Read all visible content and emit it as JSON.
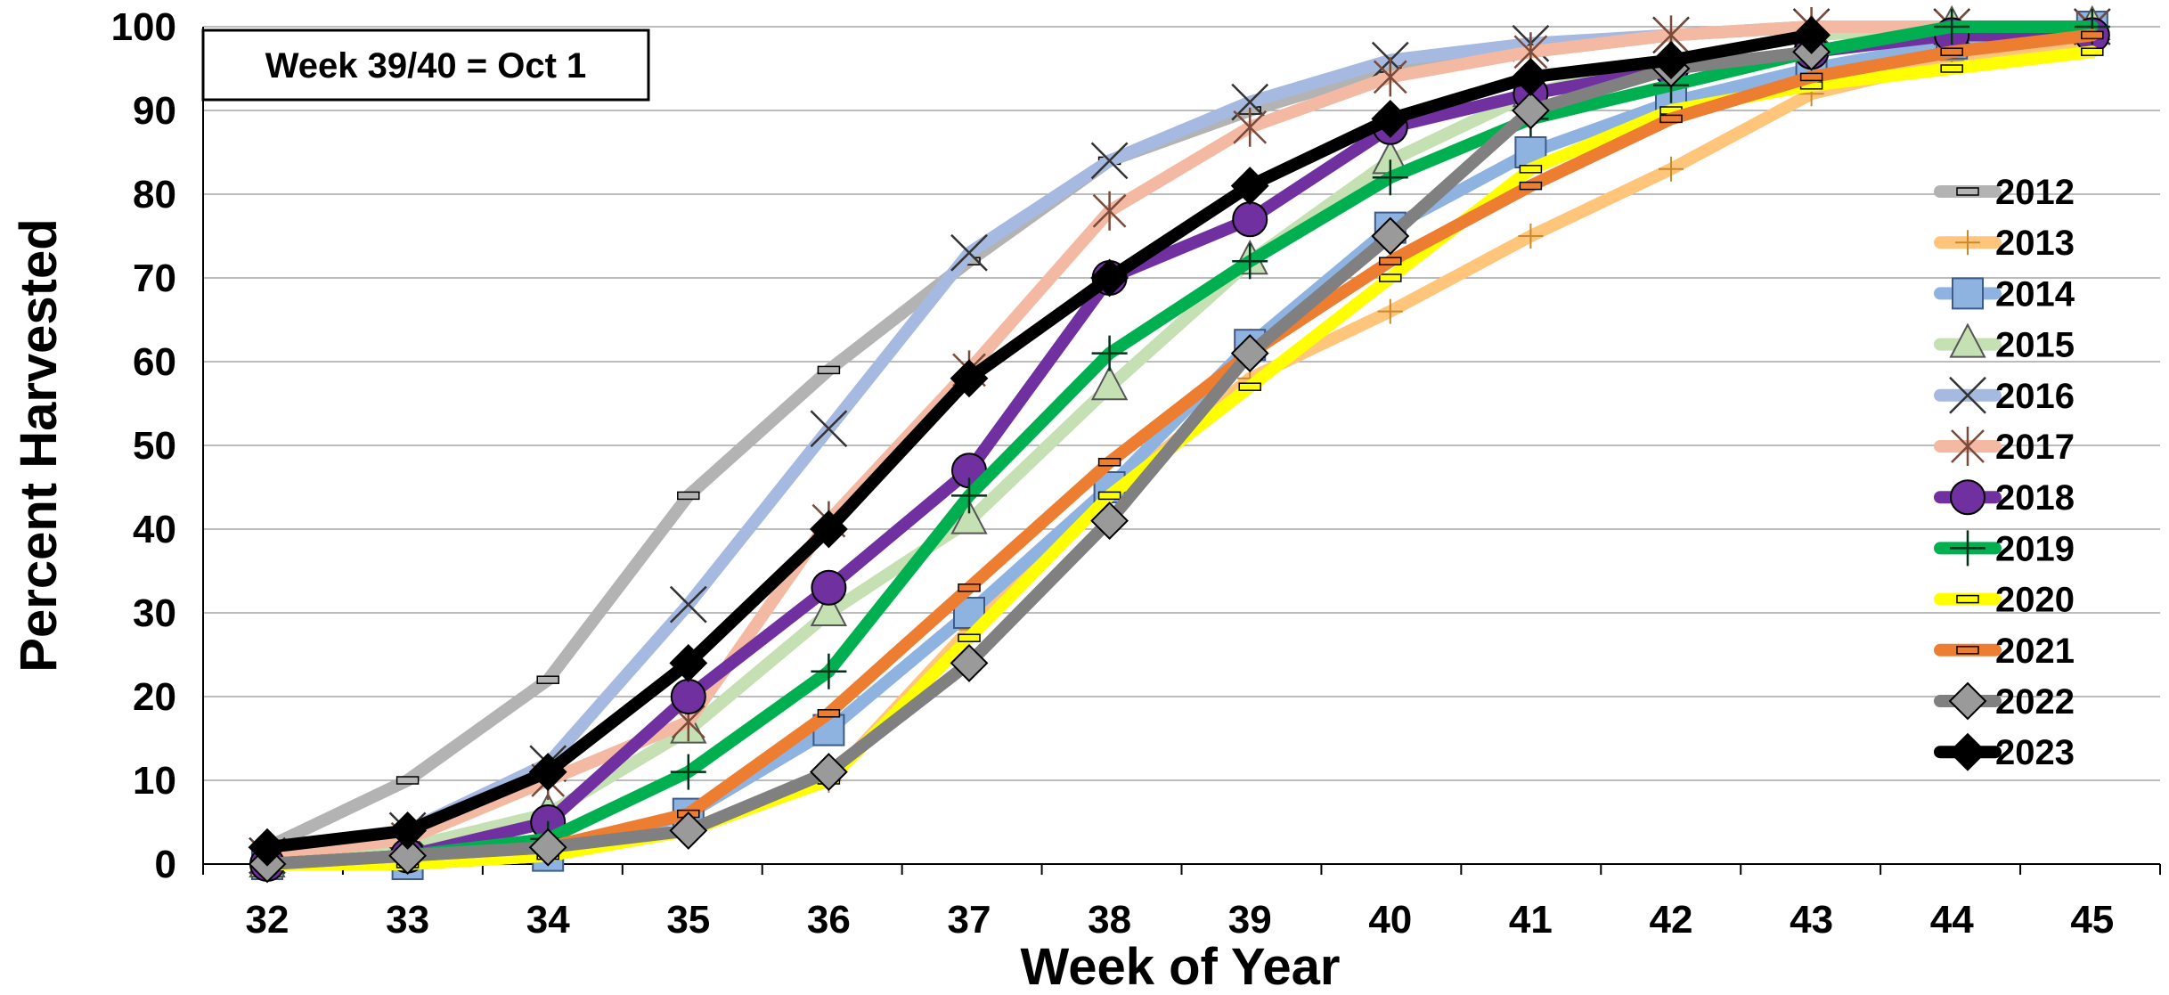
{
  "chart_data": {
    "type": "line",
    "xlabel": "Week of Year",
    "ylabel": "Percent Harvested",
    "xlim": [
      32,
      45
    ],
    "ylim": [
      0,
      100
    ],
    "x_ticks": [
      32,
      33,
      34,
      35,
      36,
      37,
      38,
      39,
      40,
      41,
      42,
      43,
      44,
      45
    ],
    "y_ticks": [
      0,
      10,
      20,
      30,
      40,
      50,
      60,
      70,
      80,
      90,
      100
    ],
    "grid": "horizontal",
    "legend_position": "right",
    "annotation": "Week 39/40 = Oct 1",
    "series": [
      {
        "name": "2012",
        "color": "#b3b3b3",
        "marker": "dash-rect",
        "x": [
          32,
          33,
          34,
          35,
          36,
          37,
          38,
          39,
          40,
          41,
          42,
          43,
          44,
          45
        ],
        "values": [
          2,
          10,
          22,
          44,
          59,
          72,
          84,
          90,
          95,
          97,
          99,
          100,
          100,
          100
        ]
      },
      {
        "name": "2013",
        "color": "#ffc57a",
        "marker": "cross-thin",
        "x": [
          32,
          33,
          34,
          35,
          36,
          37,
          38,
          39,
          40,
          41,
          42,
          43,
          44,
          45
        ],
        "values": [
          0,
          0,
          1,
          4,
          10,
          28,
          44,
          58,
          66,
          75,
          83,
          92,
          96,
          98
        ]
      },
      {
        "name": "2014",
        "color": "#8eb3e0",
        "marker": "square",
        "x": [
          32,
          33,
          34,
          35,
          36,
          37,
          38,
          39,
          40,
          41,
          42,
          43,
          44,
          45
        ],
        "values": [
          0,
          0,
          1,
          6,
          16,
          30,
          45,
          62,
          76,
          85,
          91,
          95,
          98,
          100
        ]
      },
      {
        "name": "2015",
        "color": "#c5e0b3",
        "marker": "triangle",
        "x": [
          32,
          33,
          34,
          35,
          36,
          37,
          38,
          39,
          40,
          41,
          42,
          43,
          44,
          45
        ],
        "values": [
          0,
          2,
          6,
          16,
          30,
          41,
          57,
          72,
          84,
          92,
          96,
          99,
          100,
          100
        ]
      },
      {
        "name": "2016",
        "color": "#a6b9e0",
        "marker": "x",
        "x": [
          32,
          33,
          34,
          35,
          36,
          37,
          38,
          39,
          40,
          41,
          42,
          43,
          44,
          45
        ],
        "values": [
          1,
          4,
          12,
          31,
          52,
          73,
          84,
          91,
          96,
          98,
          99,
          100,
          100,
          100
        ]
      },
      {
        "name": "2017",
        "color": "#f4b9a3",
        "marker": "asterisk",
        "x": [
          32,
          33,
          34,
          35,
          36,
          37,
          38,
          39,
          40,
          41,
          42,
          43,
          44,
          45
        ],
        "values": [
          1,
          3,
          10,
          17,
          41,
          59,
          78,
          88,
          94,
          97,
          99,
          100,
          100,
          100
        ]
      },
      {
        "name": "2018",
        "color": "#7030a0",
        "marker": "circle",
        "x": [
          32,
          33,
          34,
          35,
          36,
          37,
          38,
          39,
          40,
          41,
          42,
          43,
          44,
          45
        ],
        "values": [
          0,
          1,
          5,
          20,
          33,
          47,
          70,
          77,
          88,
          92,
          95,
          97,
          99,
          99
        ]
      },
      {
        "name": "2019",
        "color": "#00b050",
        "marker": "plus",
        "x": [
          32,
          33,
          34,
          35,
          36,
          37,
          38,
          39,
          40,
          41,
          42,
          43,
          44,
          45
        ],
        "values": [
          0,
          1,
          3,
          11,
          23,
          44,
          61,
          72,
          82,
          89,
          93,
          97,
          100,
          100
        ]
      },
      {
        "name": "2020",
        "color": "#ffff00",
        "marker": "dash-rect",
        "x": [
          32,
          33,
          34,
          35,
          36,
          37,
          38,
          39,
          40,
          41,
          42,
          43,
          44,
          45
        ],
        "values": [
          0,
          0,
          1,
          4,
          10,
          27,
          44,
          57,
          70,
          83,
          90,
          93,
          95,
          97
        ]
      },
      {
        "name": "2021",
        "color": "#ed7d31",
        "marker": "dash-rect",
        "x": [
          32,
          33,
          34,
          35,
          36,
          37,
          38,
          39,
          40,
          41,
          42,
          43,
          44,
          45
        ],
        "values": [
          0,
          1,
          2,
          6,
          18,
          33,
          48,
          61,
          72,
          81,
          89,
          94,
          97,
          99
        ]
      },
      {
        "name": "2022",
        "color": "#808080",
        "marker": "diamond",
        "x": [
          32,
          33,
          34,
          35,
          36,
          37,
          38,
          39,
          40,
          41,
          42,
          43,
          44,
          45
        ],
        "values": [
          0,
          1,
          2,
          4,
          11,
          24,
          41,
          61,
          75,
          90,
          95,
          97,
          null,
          null
        ]
      },
      {
        "name": "2023",
        "color": "#000000",
        "marker": "diamond",
        "x": [
          32,
          33,
          34,
          35,
          36,
          37,
          38,
          39,
          40,
          41,
          42,
          43,
          44,
          45
        ],
        "values": [
          2,
          4,
          11,
          24,
          40,
          58,
          70,
          81,
          89,
          94,
          96,
          99,
          null,
          null
        ]
      }
    ]
  }
}
